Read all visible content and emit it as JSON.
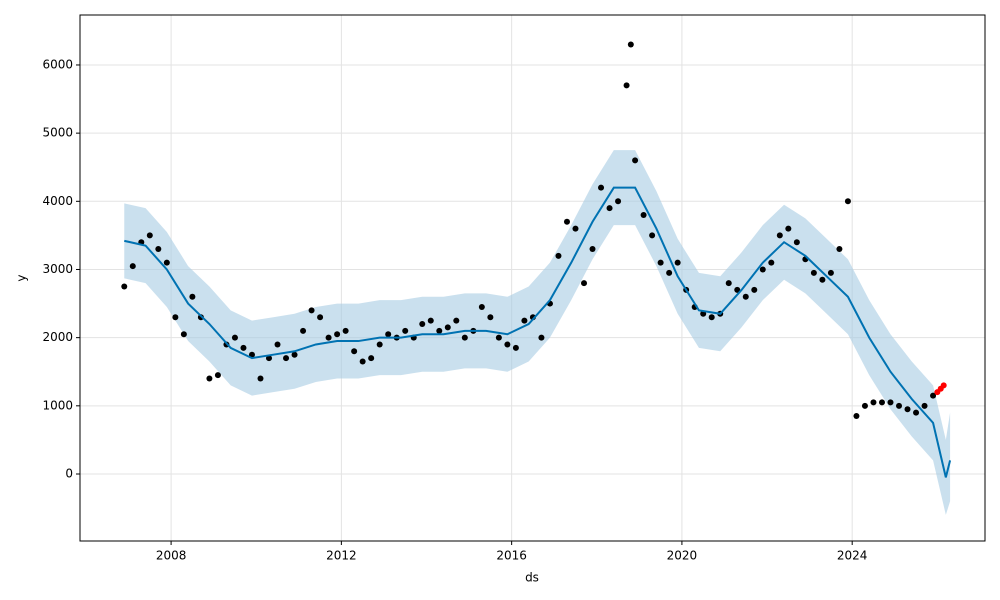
{
  "chart_data": {
    "type": "forecast",
    "xlabel": "ds",
    "ylabel": "y",
    "xlim": [
      2005.86,
      2027.12
    ],
    "xticks": [
      2008,
      2012,
      2016,
      2020,
      2024
    ],
    "ylim": [
      -983,
      6733
    ],
    "yticks": [
      0,
      1000,
      2000,
      3000,
      4000,
      5000,
      6000
    ],
    "grid": true,
    "observed": {
      "color": "#000000",
      "x": [
        2006.9,
        2007.1,
        2007.3,
        2007.5,
        2007.7,
        2007.9,
        2008.1,
        2008.3,
        2008.5,
        2008.7,
        2008.9,
        2009.1,
        2009.3,
        2009.5,
        2009.7,
        2009.9,
        2010.1,
        2010.3,
        2010.5,
        2010.7,
        2010.9,
        2011.1,
        2011.3,
        2011.5,
        2011.7,
        2011.9,
        2012.1,
        2012.3,
        2012.5,
        2012.7,
        2012.9,
        2013.1,
        2013.3,
        2013.5,
        2013.7,
        2013.9,
        2014.1,
        2014.3,
        2014.5,
        2014.7,
        2014.9,
        2015.1,
        2015.3,
        2015.5,
        2015.7,
        2015.9,
        2016.1,
        2016.3,
        2016.5,
        2016.7,
        2016.9,
        2017.1,
        2017.3,
        2017.5,
        2017.7,
        2017.9,
        2018.1,
        2018.3,
        2018.5,
        2018.7,
        2018.8,
        2018.9,
        2019.1,
        2019.3,
        2019.5,
        2019.7,
        2019.9,
        2020.1,
        2020.3,
        2020.5,
        2020.7,
        2020.9,
        2021.1,
        2021.3,
        2021.5,
        2021.7,
        2021.9,
        2022.1,
        2022.3,
        2022.5,
        2022.7,
        2022.9,
        2023.1,
        2023.3,
        2023.5,
        2023.7,
        2023.9,
        2024.1,
        2024.3,
        2024.5,
        2024.7,
        2024.9,
        2025.1,
        2025.3,
        2025.5,
        2025.7,
        2025.9
      ],
      "values": [
        2750,
        3050,
        3400,
        3500,
        3300,
        3100,
        2300,
        2050,
        2600,
        2300,
        1400,
        1450,
        1900,
        2000,
        1850,
        1750,
        1400,
        1700,
        1900,
        1700,
        1750,
        2100,
        2400,
        2300,
        2000,
        2050,
        2100,
        1800,
        1650,
        1700,
        1900,
        2050,
        2000,
        2100,
        2000,
        2200,
        2250,
        2100,
        2150,
        2250,
        2000,
        2100,
        2450,
        2300,
        2000,
        1900,
        1850,
        2250,
        2300,
        2000,
        2500,
        3200,
        3700,
        3600,
        2800,
        3300,
        4200,
        3900,
        4000,
        5700,
        6300,
        4600,
        3800,
        3500,
        3100,
        2950,
        3100,
        2700,
        2450,
        2350,
        2300,
        2350,
        2800,
        2700,
        2600,
        2700,
        3000,
        3100,
        3500,
        3600,
        3400,
        3150,
        2950,
        2850,
        2950,
        3300,
        4000,
        850,
        1000,
        1050,
        1050,
        1050,
        1000,
        950,
        900,
        1000,
        1150
      ]
    },
    "recent": {
      "color": "#ff0000",
      "x": [
        2026.0,
        2026.08,
        2026.15
      ],
      "values": [
        1200,
        1250,
        1300
      ]
    },
    "forecast": {
      "color": "#0072b2",
      "band_color": "#a6cbe3",
      "x": [
        2006.9,
        2007.4,
        2007.9,
        2008.4,
        2008.9,
        2009.4,
        2009.9,
        2010.4,
        2010.9,
        2011.4,
        2011.9,
        2012.4,
        2012.9,
        2013.4,
        2013.9,
        2014.4,
        2014.9,
        2015.4,
        2015.9,
        2016.4,
        2016.9,
        2017.4,
        2017.9,
        2018.4,
        2018.9,
        2019.4,
        2019.9,
        2020.4,
        2020.9,
        2021.4,
        2021.9,
        2022.4,
        2022.9,
        2023.4,
        2023.9,
        2024.4,
        2024.9,
        2025.4,
        2025.9,
        2026.2,
        2026.3
      ],
      "values": [
        3420,
        3350,
        3000,
        2500,
        2200,
        1850,
        1700,
        1750,
        1800,
        1900,
        1950,
        1950,
        2000,
        2000,
        2050,
        2050,
        2100,
        2100,
        2050,
        2200,
        2550,
        3100,
        3700,
        4200,
        4200,
        3600,
        2900,
        2400,
        2350,
        2700,
        3100,
        3400,
        3200,
        2900,
        2600,
        2000,
        1500,
        1100,
        750,
        -50,
        200
      ],
      "upper": [
        3970,
        3900,
        3550,
        3050,
        2750,
        2400,
        2250,
        2300,
        2350,
        2450,
        2500,
        2500,
        2550,
        2550,
        2600,
        2600,
        2650,
        2650,
        2600,
        2750,
        3100,
        3650,
        4250,
        4750,
        4750,
        4150,
        3450,
        2950,
        2900,
        3250,
        3650,
        3950,
        3750,
        3450,
        3150,
        2550,
        2050,
        1650,
        1300,
        500,
        900
      ],
      "lower": [
        2870,
        2800,
        2450,
        1950,
        1650,
        1300,
        1150,
        1200,
        1250,
        1350,
        1400,
        1400,
        1450,
        1450,
        1500,
        1500,
        1550,
        1550,
        1500,
        1650,
        2000,
        2550,
        3150,
        3650,
        3650,
        3050,
        2350,
        1850,
        1800,
        2150,
        2550,
        2850,
        2650,
        2350,
        2050,
        1450,
        950,
        550,
        200,
        -600,
        -400
      ]
    }
  }
}
